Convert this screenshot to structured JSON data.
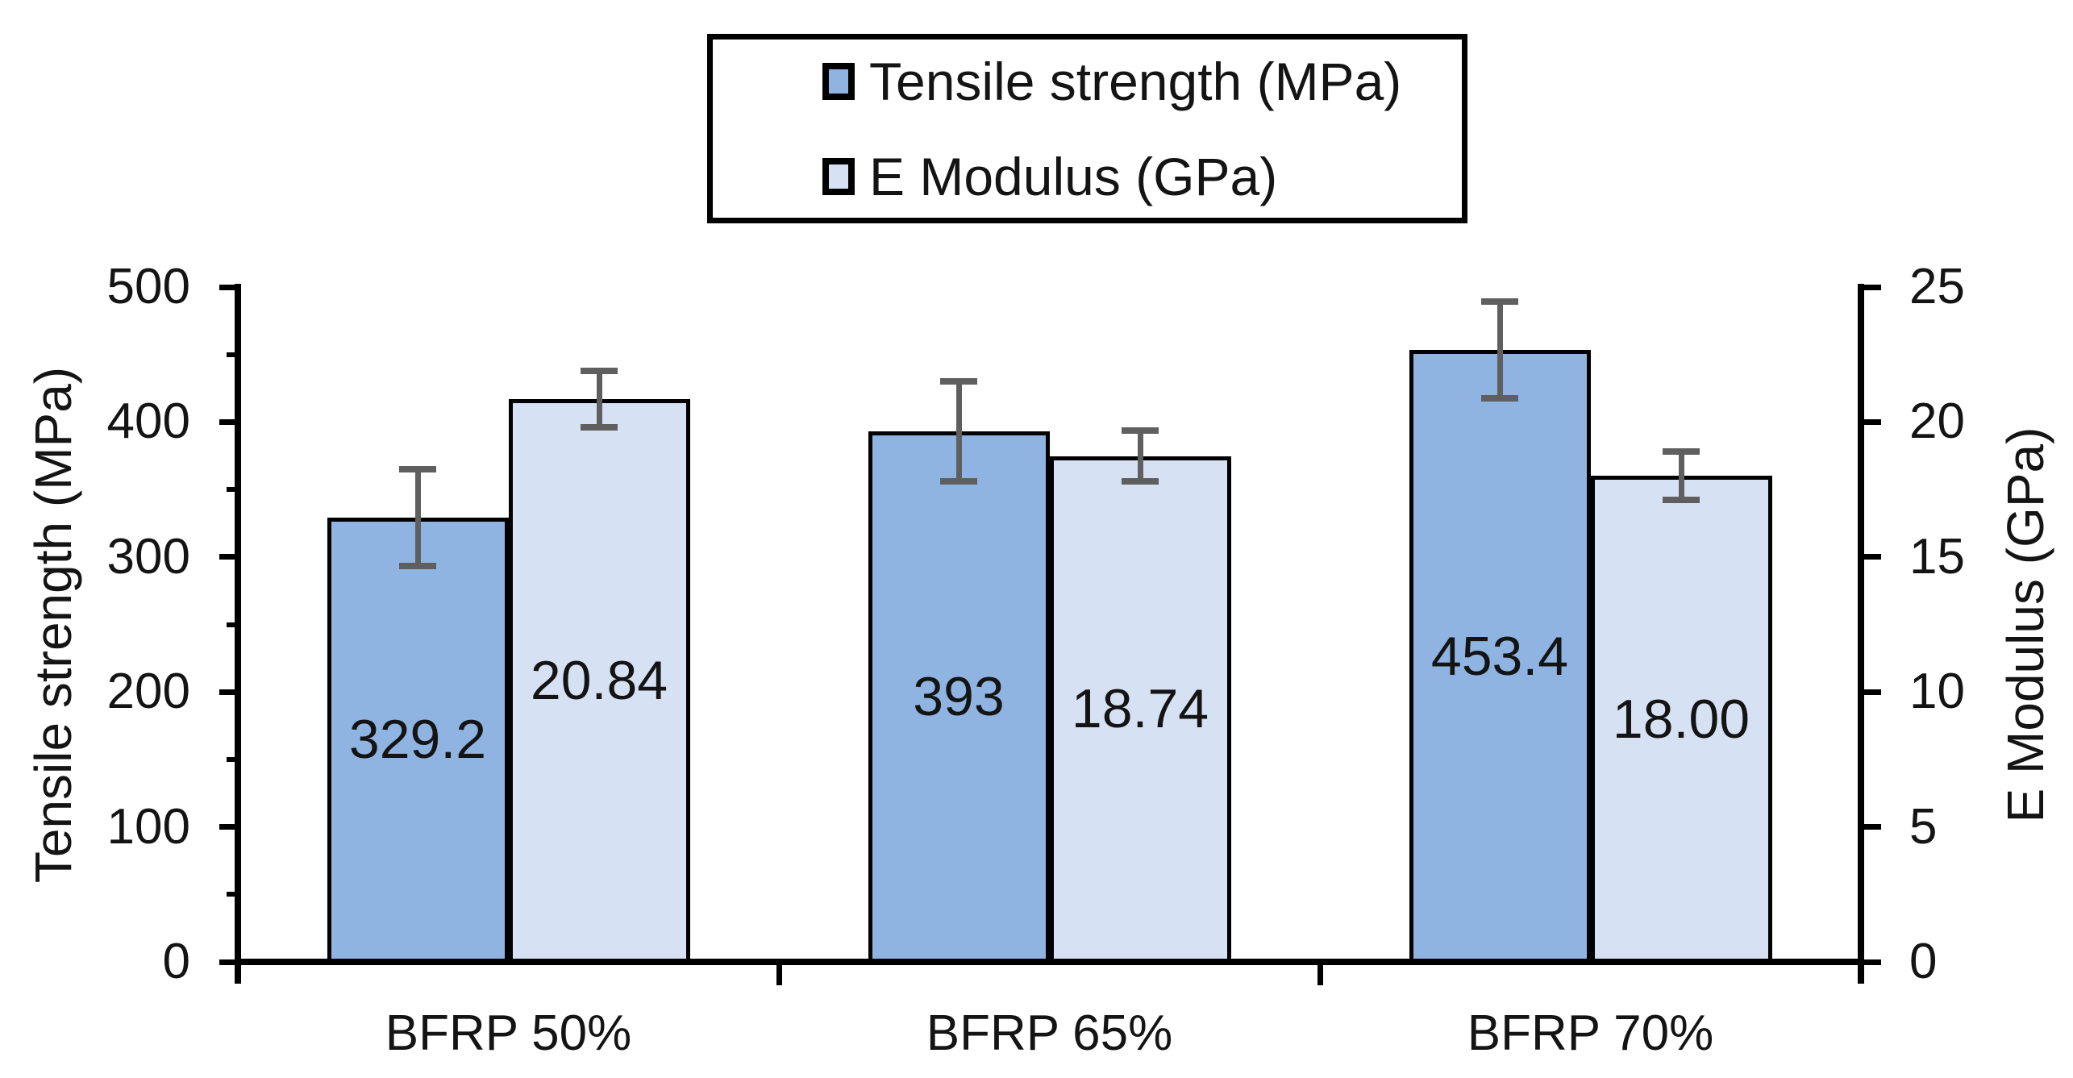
{
  "chart_data": {
    "type": "bar",
    "subtype": "grouped-dual-axis-with-error-bars",
    "categories": [
      "BFRP 50%",
      "BFRP 65%",
      "BFRP 70%"
    ],
    "series": [
      {
        "name": "Tensile strength (MPa)",
        "axis": "left",
        "color": "#8fb4e2",
        "values": [
          329.2,
          393,
          453.4
        ],
        "value_labels": [
          "329.2",
          "393",
          "453.4"
        ],
        "error_bars": [
          36,
          37,
          36
        ]
      },
      {
        "name": "E Modulus (GPa)",
        "axis": "right",
        "color": "#d6e2f3",
        "values": [
          20.84,
          18.74,
          18.0
        ],
        "value_labels": [
          "20.84",
          "18.74",
          "18.00"
        ],
        "error_bars": [
          1.05,
          0.95,
          0.9
        ]
      }
    ],
    "left_axis": {
      "title": "Tensile strength (MPa)",
      "min": 0,
      "max": 500,
      "major_tick_interval": 100,
      "minor_tick_interval": 50,
      "tick_labels": [
        "0",
        "100",
        "200",
        "300",
        "400",
        "500"
      ]
    },
    "right_axis": {
      "title": "E Modulus (GPa)",
      "min": 0,
      "max": 25,
      "major_tick_interval": 5,
      "tick_labels": [
        "0",
        "5",
        "10",
        "15",
        "20",
        "25"
      ]
    },
    "legend": {
      "position": "top-center",
      "border": true,
      "entries": [
        "Tensile strength (MPa)",
        "E Modulus (GPa)"
      ]
    },
    "grid": false,
    "colors": {
      "bar_border": "#000000",
      "error_bar": "#5f5f5f",
      "axis_line": "#000000",
      "text": "#141414",
      "background": "#ffffff"
    }
  }
}
